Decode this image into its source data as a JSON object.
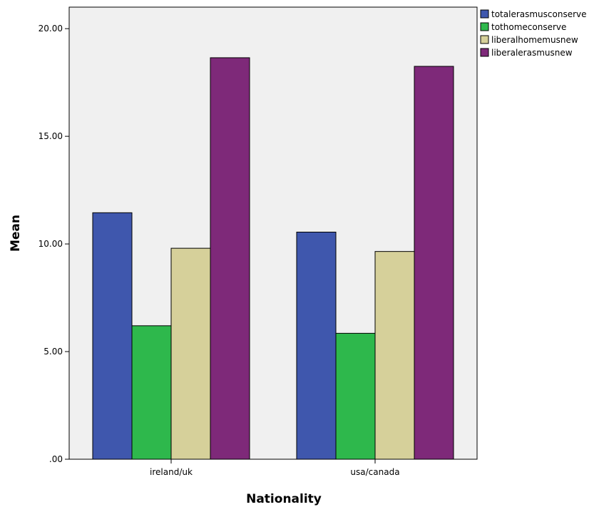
{
  "chart_data": {
    "type": "bar",
    "title": "",
    "xlabel": "Nationality",
    "ylabel": "Mean",
    "categories": [
      "ireland/uk",
      "usa/canada"
    ],
    "series": [
      {
        "name": "totalerasmusconserve",
        "color": "#3f57ad",
        "values": [
          11.45,
          10.55
        ]
      },
      {
        "name": "tothomeconserve",
        "color": "#2eb84c",
        "values": [
          6.2,
          5.85
        ]
      },
      {
        "name": "liberalhomemusnew",
        "color": "#d6d09a",
        "values": [
          9.8,
          9.65
        ]
      },
      {
        "name": "liberalerasmusnew",
        "color": "#7e2979",
        "values": [
          18.65,
          18.25
        ]
      }
    ],
    "ylim": [
      0,
      21
    ],
    "yticks": [
      0,
      5,
      10,
      15,
      20
    ],
    "ytick_labels": [
      ".00",
      "5.00",
      "10.00",
      "15.00",
      "20.00"
    ],
    "grid": false,
    "plot_background": "#f0f0f0",
    "legend_position": "top-right outside"
  }
}
